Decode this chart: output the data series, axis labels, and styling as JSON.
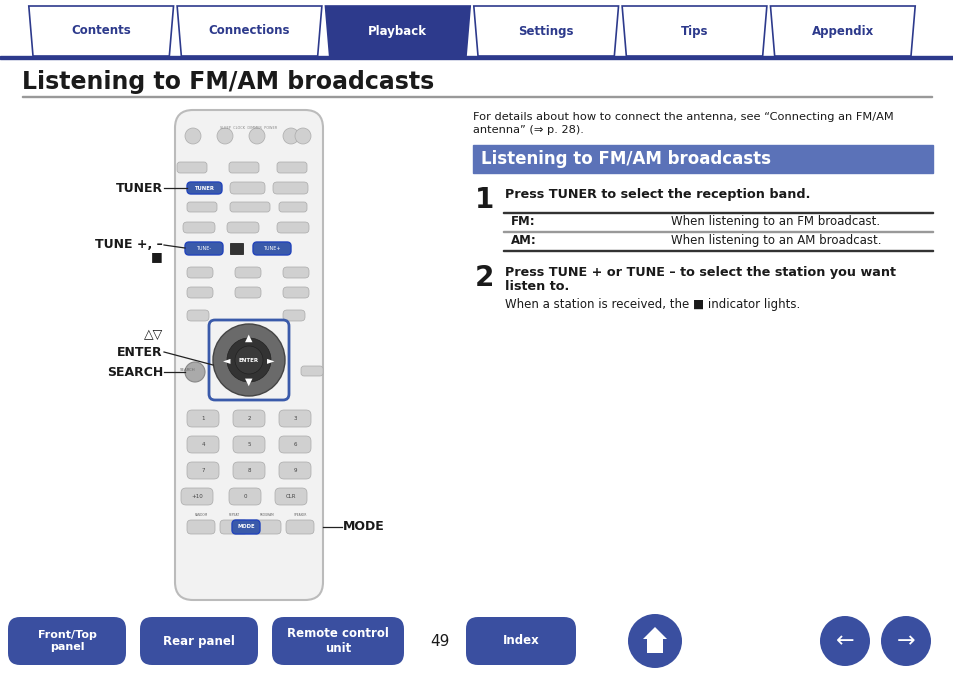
{
  "bg_color": "#ffffff",
  "nav_bar_color": "#2d3a8c",
  "nav_tabs": [
    "Contents",
    "Connections",
    "Playback",
    "Settings",
    "Tips",
    "Appendix"
  ],
  "nav_tab_active": 2,
  "nav_tab_active_color": "#2d3a8c",
  "nav_tab_inactive_text_color": "#2d3a8c",
  "nav_tab_active_text_color": "#ffffff",
  "page_title": "Listening to FM/AM broadcasts",
  "section_header": "Listening to FM/AM broadcasts",
  "section_header_bg": "#5b72b8",
  "section_header_text_color": "#ffffff",
  "intro_line1": "For details about how to connect the antenna, see “Connecting an FM/AM",
  "intro_line2": "antenna” (⇒ p. 28).",
  "step1_num": "1",
  "step1_text": "Press TUNER to select the reception band.",
  "step1_fm_label": "FM:",
  "step1_fm_desc": "When listening to an FM broadcast.",
  "step1_am_label": "AM:",
  "step1_am_desc": "When listening to an AM broadcast.",
  "step2_num": "2",
  "step2_line1": "Press TUNE + or TUNE – to select the station you want",
  "step2_line2": "listen to.",
  "step2_sub": "When a station is received, the ■ indicator lights.",
  "label_tuner": "TUNER",
  "label_tune_plus_minus": "TUNE +, –",
  "label_square": "■",
  "label_tri": "△▽",
  "label_enter": "ENTER",
  "label_search": "SEARCH",
  "label_mode": "MODE",
  "bottom_buttons": [
    "Front/Top\npanel",
    "Rear panel",
    "Remote control\nunit",
    "Index"
  ],
  "bottom_button_color": "#3a4fa0",
  "page_number": "49",
  "remote_body_color": "#f2f2f2",
  "remote_border_color": "#bbbbbb",
  "button_light": "#d0d0d0",
  "button_blue": "#3a5aaa",
  "button_dark": "#666666",
  "dpad_outer": "#6a6a6a",
  "dpad_inner": "#444444",
  "search_btn_color": "#aaaaaa"
}
